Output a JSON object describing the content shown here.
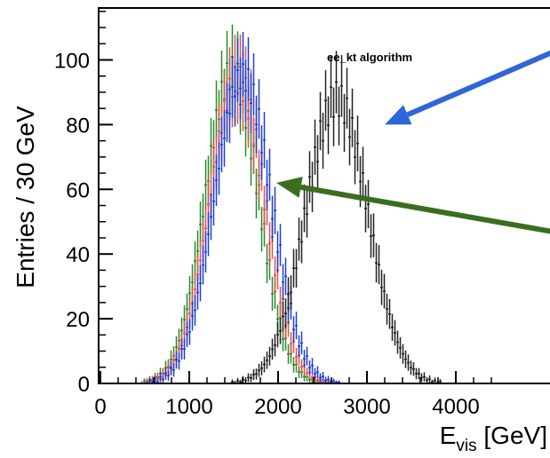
{
  "chart_data": {
    "type": "scatter",
    "title": "",
    "annotation": "ee_kt algorithm",
    "ylabel": "Entries / 30 GeV",
    "xlabel_main": "E",
    "xlabel_sub": "vis",
    "xlabel_unit": " [GeV]",
    "xlim": [
      0,
      4500
    ],
    "ylim": [
      0,
      115
    ],
    "xticks": [
      0,
      1000,
      2000,
      3000,
      4000
    ],
    "yticks": [
      0,
      20,
      40,
      60,
      80,
      100
    ],
    "grid": false,
    "series": [
      {
        "color": "#2a8a2a",
        "mean": 1480,
        "sigma": 300,
        "peak": 96
      },
      {
        "color": "#e0504a",
        "mean": 1540,
        "sigma": 310,
        "peak": 94
      },
      {
        "color": "#1f3fd6",
        "mean": 1600,
        "sigma": 320,
        "peak": 95
      },
      {
        "color": "#222222",
        "mean": 2660,
        "sigma": 350,
        "peak": 88
      }
    ],
    "bin_width": 30,
    "arrows": [
      {
        "color": "#2e66d8",
        "from": [
          6150,
          115
        ],
        "to": [
          3200,
          80
        ]
      },
      {
        "color": "#3a6e1e",
        "from": [
          6100,
          42
        ],
        "to": [
          1980,
          62
        ]
      }
    ]
  }
}
